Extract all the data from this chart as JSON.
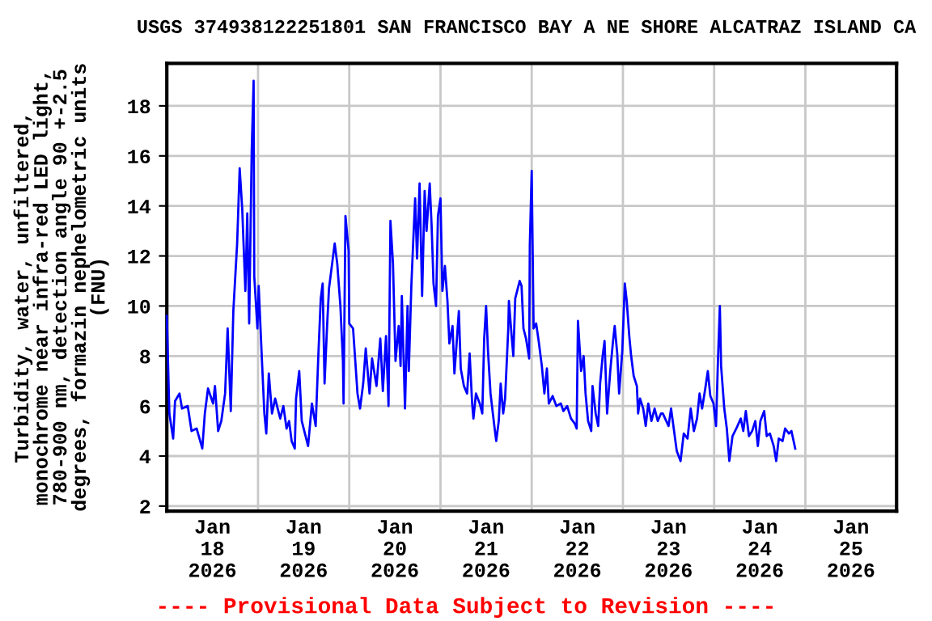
{
  "chart_data": {
    "type": "line",
    "title": "USGS 374938122251801 SAN FRANCISCO BAY A NE SHORE ALCATRAZ ISLAND CA",
    "ylabel": "Turbidity, water, unfiltered,\nmonochrome near infra-red LED light,\n780-900 nm, detection angle 90 +-2.5\ndegrees, formazin nephelometric units\n(FNU)",
    "annotations": [
      "---- Provisional Data Subject to Revision ----"
    ],
    "x": [
      "2026-01-18T00:00",
      "2026-01-18T00:40",
      "2026-01-18T01:40",
      "2026-01-18T02:10",
      "2026-01-18T03:20",
      "2026-01-18T04:00",
      "2026-01-18T05:30",
      "2026-01-18T06:30",
      "2026-01-18T07:50",
      "2026-01-18T09:20",
      "2026-01-18T10:00",
      "2026-01-18T10:50",
      "2026-01-18T12:10",
      "2026-01-18T12:40",
      "2026-01-18T13:30",
      "2026-01-18T14:20",
      "2026-01-18T15:20",
      "2026-01-18T16:00",
      "2026-01-18T16:50",
      "2026-01-18T17:30",
      "2026-01-18T18:30",
      "2026-01-18T19:10",
      "2026-01-18T19:50",
      "2026-01-18T20:40",
      "2026-01-18T21:10",
      "2026-01-18T21:40",
      "2026-01-18T22:20",
      "2026-01-18T22:50",
      "2026-01-18T23:00",
      "2026-01-18T23:50",
      "2026-01-19T00:10",
      "2026-01-19T01:00",
      "2026-01-19T01:40",
      "2026-01-19T02:10",
      "2026-01-19T02:50",
      "2026-01-19T03:40",
      "2026-01-19T04:30",
      "2026-01-19T05:50",
      "2026-01-19T06:40",
      "2026-01-19T07:30",
      "2026-01-19T08:10",
      "2026-01-19T08:50",
      "2026-01-19T09:40",
      "2026-01-19T10:00",
      "2026-01-19T10:50",
      "2026-01-19T11:30",
      "2026-01-19T12:40",
      "2026-01-19T13:10",
      "2026-01-19T14:10",
      "2026-01-19T15:10",
      "2026-01-19T15:50",
      "2026-01-19T16:30",
      "2026-01-19T17:00",
      "2026-01-19T17:30",
      "2026-01-19T18:10",
      "2026-01-19T18:40",
      "2026-01-19T19:30",
      "2026-01-19T20:10",
      "2026-01-19T20:50",
      "2026-01-19T21:40",
      "2026-01-19T22:20",
      "2026-01-19T22:30",
      "2026-01-19T23:00",
      "2026-01-19T23:50",
      "2026-01-20T00:00",
      "2026-01-20T01:00",
      "2026-01-20T02:10",
      "2026-01-20T02:50",
      "2026-01-20T03:40",
      "2026-01-20T04:20",
      "2026-01-20T05:20",
      "2026-01-20T06:00",
      "2026-01-20T07:10",
      "2026-01-20T08:10",
      "2026-01-20T08:50",
      "2026-01-20T09:40",
      "2026-01-20T10:20",
      "2026-01-20T10:50",
      "2026-01-20T11:30",
      "2026-01-20T12:10",
      "2026-01-20T13:00",
      "2026-01-20T13:30",
      "2026-01-20T13:50",
      "2026-01-20T14:40",
      "2026-01-20T15:20",
      "2026-01-20T15:40",
      "2026-01-20T16:20",
      "2026-01-20T16:50",
      "2026-01-20T17:20",
      "2026-01-20T17:50",
      "2026-01-20T18:30",
      "2026-01-20T19:10",
      "2026-01-20T19:50",
      "2026-01-20T20:20",
      "2026-01-20T21:10",
      "2026-01-20T21:40",
      "2026-01-20T22:10",
      "2026-01-20T22:50",
      "2026-01-20T23:20",
      "2026-01-21T00:00",
      "2026-01-21T00:30",
      "2026-01-21T01:10",
      "2026-01-21T01:50",
      "2026-01-21T02:20",
      "2026-01-21T03:10",
      "2026-01-21T03:40",
      "2026-01-21T04:20",
      "2026-01-21T04:50",
      "2026-01-21T05:20",
      "2026-01-21T06:10",
      "2026-01-21T07:00",
      "2026-01-21T07:40",
      "2026-01-21T08:20",
      "2026-01-21T08:40",
      "2026-01-21T09:20",
      "2026-01-21T10:20",
      "2026-01-21T11:00",
      "2026-01-21T11:30",
      "2026-01-21T12:00",
      "2026-01-21T12:30",
      "2026-01-21T13:10",
      "2026-01-21T14:10",
      "2026-01-21T14:40",
      "2026-01-21T15:20",
      "2026-01-21T15:50",
      "2026-01-21T16:30",
      "2026-01-21T17:00",
      "2026-01-21T17:50",
      "2026-01-21T18:00",
      "2026-01-21T18:40",
      "2026-01-21T19:10",
      "2026-01-21T19:40",
      "2026-01-21T20:10",
      "2026-01-21T20:50",
      "2026-01-21T21:20",
      "2026-01-21T21:50",
      "2026-01-21T22:30",
      "2026-01-21T23:20",
      "2026-01-21T23:30",
      "2026-01-22T00:00",
      "2026-01-22T00:30",
      "2026-01-22T01:10",
      "2026-01-22T01:50",
      "2026-01-22T02:40",
      "2026-01-22T03:20",
      "2026-01-22T04:00",
      "2026-01-22T04:30",
      "2026-01-22T05:30",
      "2026-01-22T06:30",
      "2026-01-22T07:40",
      "2026-01-22T08:20",
      "2026-01-22T09:20",
      "2026-01-22T10:20",
      "2026-01-22T11:20",
      "2026-01-22T11:50",
      "2026-01-22T12:10",
      "2026-01-22T13:00",
      "2026-01-22T13:40",
      "2026-01-22T14:10",
      "2026-01-22T14:50",
      "2026-01-22T15:40",
      "2026-01-22T16:00",
      "2026-01-22T16:50",
      "2026-01-22T17:30",
      "2026-01-22T18:00",
      "2026-01-22T18:40",
      "2026-01-22T19:10",
      "2026-01-22T19:50",
      "2026-01-22T20:40",
      "2026-01-22T21:20",
      "2026-01-22T21:50",
      "2026-01-22T22:30",
      "2026-01-22T23:00",
      "2026-01-22T23:50",
      "2026-01-23T00:30",
      "2026-01-23T01:00",
      "2026-01-23T01:40",
      "2026-01-23T02:10",
      "2026-01-23T02:50",
      "2026-01-23T03:40",
      "2026-01-23T04:00",
      "2026-01-23T04:30",
      "2026-01-23T05:20",
      "2026-01-23T06:00",
      "2026-01-23T06:40",
      "2026-01-23T07:30",
      "2026-01-23T08:20",
      "2026-01-23T09:10",
      "2026-01-23T10:00",
      "2026-01-23T10:30",
      "2026-01-23T12:00",
      "2026-01-23T12:40",
      "2026-01-23T14:10",
      "2026-01-23T15:10",
      "2026-01-23T16:00",
      "2026-01-23T17:00",
      "2026-01-23T17:50",
      "2026-01-23T18:40",
      "2026-01-23T19:30",
      "2026-01-23T20:10",
      "2026-01-23T20:50",
      "2026-01-23T21:40",
      "2026-01-23T22:20",
      "2026-01-23T23:00",
      "2026-01-23T23:50",
      "2026-01-24T00:30",
      "2026-01-24T01:00",
      "2026-01-24T01:30",
      "2026-01-24T01:50",
      "2026-01-24T02:40",
      "2026-01-24T03:20",
      "2026-01-24T04:00",
      "2026-01-24T04:50",
      "2026-01-24T05:50",
      "2026-01-24T07:00",
      "2026-01-24T07:40",
      "2026-01-24T08:20",
      "2026-01-24T09:10",
      "2026-01-24T10:00",
      "2026-01-24T10:50",
      "2026-01-24T11:30",
      "2026-01-24T12:10",
      "2026-01-24T13:10",
      "2026-01-24T13:50",
      "2026-01-24T14:40",
      "2026-01-24T15:40",
      "2026-01-24T16:20",
      "2026-01-24T17:00",
      "2026-01-24T18:00",
      "2026-01-24T18:40",
      "2026-01-24T19:40",
      "2026-01-24T20:20",
      "2026-01-24T21:20"
    ],
    "series": [
      {
        "color": "#0000ff",
        "values": [
          9.6,
          5.7,
          4.7,
          6.2,
          6.5,
          5.9,
          6.0,
          5.0,
          5.1,
          4.3,
          5.7,
          6.7,
          6.1,
          6.8,
          5.0,
          5.4,
          6.5,
          9.1,
          5.8,
          9.8,
          12.5,
          15.5,
          13.9,
          10.6,
          13.7,
          9.3,
          16.2,
          19.0,
          11.2,
          9.1,
          10.8,
          7.9,
          5.7,
          4.9,
          7.3,
          5.7,
          6.3,
          5.5,
          6.0,
          5.1,
          5.4,
          4.6,
          4.3,
          6.3,
          7.4,
          5.4,
          4.7,
          4.4,
          6.1,
          5.2,
          7.9,
          10.3,
          10.9,
          6.9,
          9.2,
          10.7,
          11.7,
          12.5,
          11.7,
          10.0,
          7.8,
          6.1,
          13.6,
          12.2,
          9.3,
          9.1,
          6.5,
          5.9,
          6.9,
          8.3,
          6.5,
          7.9,
          6.8,
          8.7,
          6.6,
          8.8,
          6.0,
          13.4,
          11.7,
          7.8,
          9.2,
          7.6,
          10.4,
          5.9,
          10.0,
          7.4,
          10.8,
          12.6,
          14.3,
          11.9,
          14.9,
          10.4,
          14.6,
          13.0,
          14.9,
          13.2,
          10.9,
          10.0,
          13.6,
          14.3,
          10.6,
          11.6,
          10.2,
          8.5,
          9.2,
          7.3,
          8.7,
          9.8,
          7.5,
          6.8,
          6.5,
          8.1,
          6.1,
          5.5,
          6.5,
          6.1,
          5.7,
          8.7,
          10.0,
          8.2,
          6.5,
          5.2,
          4.6,
          5.4,
          6.9,
          5.7,
          6.3,
          9.1,
          10.2,
          8.9,
          8.0,
          10.3,
          10.6,
          11.0,
          10.8,
          9.1,
          8.7,
          7.9,
          12.4,
          15.4,
          9.1,
          9.3,
          8.6,
          7.6,
          6.5,
          7.5,
          6.1,
          6.4,
          6.0,
          6.1,
          5.8,
          6.0,
          5.5,
          5.3,
          5.1,
          9.4,
          7.4,
          8.0,
          6.5,
          5.4,
          5.0,
          6.8,
          5.7,
          5.2,
          6.9,
          8.0,
          8.6,
          5.7,
          7.4,
          8.5,
          9.2,
          8.1,
          6.5,
          8.2,
          10.9,
          10.2,
          8.8,
          8.0,
          7.2,
          6.8,
          5.7,
          6.3,
          5.9,
          5.2,
          6.1,
          5.4,
          5.9,
          5.4,
          5.7,
          5.7,
          5.2,
          5.9,
          4.2,
          3.8,
          4.9,
          4.7,
          5.9,
          5.0,
          5.5,
          6.5,
          5.9,
          6.7,
          7.4,
          6.4,
          6.1,
          5.2,
          7.8,
          10.0,
          7.6,
          5.9,
          5.1,
          3.8,
          4.8,
          5.1,
          5.5,
          5.0,
          5.8,
          4.8,
          5.0,
          5.4,
          4.4,
          5.4,
          5.8,
          4.8,
          4.9,
          4.4,
          3.8,
          4.7,
          4.6,
          5.1,
          4.9,
          5.0,
          4.3
        ]
      }
    ],
    "xlim": [
      "2026-01-18",
      "2026-01-26"
    ],
    "xticks": [
      {
        "value": "2026-01-18T12:00",
        "label": "Jan\n18\n2026"
      },
      {
        "value": "2026-01-19",
        "label": null
      },
      {
        "value": "2026-01-19T12:00",
        "label": "Jan\n19\n2026"
      },
      {
        "value": "2026-01-20",
        "label": null
      },
      {
        "value": "2026-01-20T12:00",
        "label": "Jan\n20\n2026"
      },
      {
        "value": "2026-01-21",
        "label": null
      },
      {
        "value": "2026-01-21T12:00",
        "label": "Jan\n21\n2026"
      },
      {
        "value": "2026-01-22",
        "label": null
      },
      {
        "value": "2026-01-22T12:00",
        "label": "Jan\n22\n2026"
      },
      {
        "value": "2026-01-23",
        "label": null
      },
      {
        "value": "2026-01-23T12:00",
        "label": "Jan\n23\n2026"
      },
      {
        "value": "2026-01-24",
        "label": null
      },
      {
        "value": "2026-01-24T12:00",
        "label": "Jan\n24\n2026"
      },
      {
        "value": "2026-01-25",
        "label": null
      },
      {
        "value": "2026-01-25T12:00",
        "label": "Jan\n25\n2026"
      }
    ],
    "ylim": [
      1.8,
      19.7
    ],
    "yticks": [
      2,
      4,
      6,
      8,
      10,
      12,
      14,
      16,
      18
    ],
    "grid": true,
    "line_style": "solid",
    "marker": "none"
  }
}
